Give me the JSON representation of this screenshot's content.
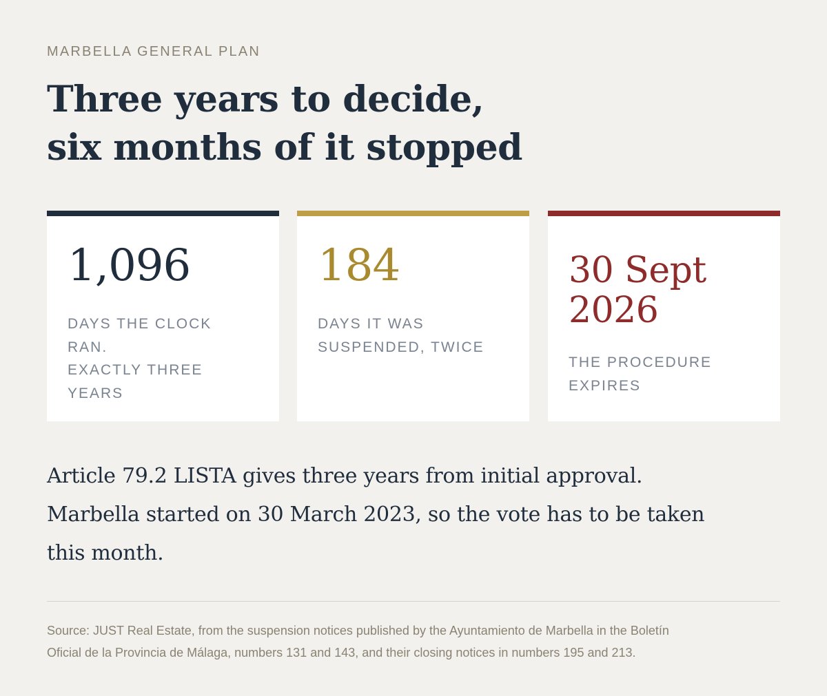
{
  "eyebrow": "MARBELLA GENERAL PLAN",
  "title": {
    "line1": "Three years to decide,",
    "line2": "six months of it stopped"
  },
  "cards": [
    {
      "value": "1,096",
      "label_lines": [
        "DAYS THE CLOCK",
        "RAN.",
        "EXACTLY THREE",
        "YEARS"
      ],
      "accent": "#1f2d3d"
    },
    {
      "value": "184",
      "label_lines": [
        "DAYS IT WAS",
        "SUSPENDED, TWICE"
      ],
      "accent": "#bf9e48"
    },
    {
      "value_lines": [
        "30 Sept",
        "2026"
      ],
      "label_lines": [
        "THE PROCEDURE",
        "EXPIRES"
      ],
      "accent": "#8e2b2b"
    }
  ],
  "body": {
    "line1": "Article 79.2 LISTA gives three years from initial approval.",
    "line2": "Marbella started on 30 March 2023, so the vote has to be taken",
    "line3": "this month."
  },
  "source": {
    "line1": "Source: JUST Real Estate, from the suspension notices published by the Ayuntamiento de Marbella in the Boletín",
    "line2": "Oficial de la Provincia de Málaga, numbers 131 and 143, and their closing notices in numbers 195 and 213."
  },
  "colors": {
    "background": "#f3f1ed",
    "navy": "#1f2d3d",
    "gold": "#bf9e48",
    "red": "#8e2b2b",
    "muted": "#8a8373"
  }
}
